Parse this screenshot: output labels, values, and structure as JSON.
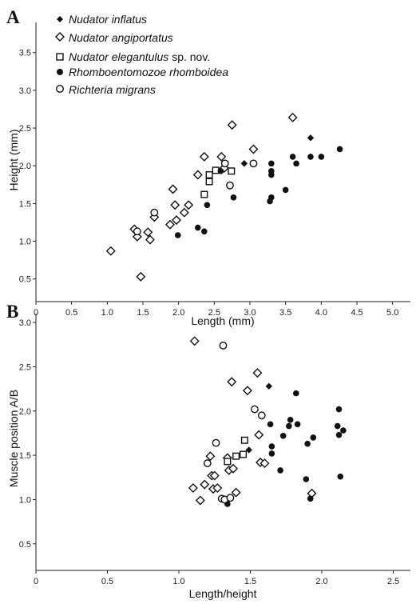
{
  "panels": [
    {
      "letter": "A",
      "xlabel": "Length (mm)",
      "ylabel": "Height (mm)",
      "xticks": [
        "0",
        "0.5",
        "1.0",
        "1.5",
        "2.0",
        "2.5",
        "3.0",
        "3.5",
        "4.0",
        "4.5",
        "5.0"
      ],
      "yticks": [
        "0.5",
        "1.0",
        "1.5",
        "2.0",
        "2.5",
        "3.0",
        "3.5"
      ]
    },
    {
      "letter": "B",
      "xlabel": "Length/height",
      "ylabel": "Muscle position A/B",
      "xticks": [
        "0",
        "0.5",
        "1.0",
        "1.5",
        "2.0",
        "2.5"
      ],
      "yticks": [
        "0.5",
        "1.0",
        "1.5",
        "2.0",
        "2.5",
        "3.0"
      ]
    }
  ],
  "legend": [
    {
      "italic": "Nudator inflatus",
      "suffix": "",
      "marker": "filled-diamond"
    },
    {
      "italic": "Nudator angiportatus",
      "suffix": "",
      "marker": "open-diamond"
    },
    {
      "italic": "Nudator elegantulus",
      "suffix": " sp. nov.",
      "marker": "open-square"
    },
    {
      "italic": "Rhomboentomozoe rhomboidea",
      "suffix": "",
      "marker": "filled-circle"
    },
    {
      "italic": "Richteria migrans",
      "suffix": "",
      "marker": "open-circle"
    }
  ],
  "chart_data": [
    {
      "type": "scatter",
      "xlim": [
        0,
        5.25
      ],
      "ylim": [
        0.2,
        3.9
      ],
      "series": [
        {
          "name": "Nudator inflatus",
          "marker": "filled-diamond",
          "points": [
            [
              2.62,
              1.97
            ],
            [
              2.92,
              2.03
            ],
            [
              3.85,
              2.37
            ]
          ]
        },
        {
          "name": "Nudator angiportatus",
          "marker": "open-diamond",
          "points": [
            [
              1.05,
              0.87
            ],
            [
              1.38,
              1.16
            ],
            [
              1.42,
              1.06
            ],
            [
              1.47,
              0.53
            ],
            [
              1.57,
              1.12
            ],
            [
              1.6,
              1.02
            ],
            [
              1.66,
              1.32
            ],
            [
              1.88,
              1.22
            ],
            [
              1.92,
              1.69
            ],
            [
              1.95,
              1.48
            ],
            [
              1.97,
              1.28
            ],
            [
              2.08,
              1.38
            ],
            [
              2.14,
              1.48
            ],
            [
              2.27,
              1.88
            ],
            [
              2.36,
              2.12
            ],
            [
              2.6,
              2.12
            ],
            [
              2.64,
              1.97
            ],
            [
              2.75,
              2.54
            ],
            [
              3.05,
              2.22
            ],
            [
              3.6,
              2.64
            ]
          ]
        },
        {
          "name": "Nudator elegantulus",
          "marker": "open-square",
          "points": [
            [
              2.36,
              1.62
            ],
            [
              2.43,
              1.79
            ],
            [
              2.43,
              1.88
            ],
            [
              2.52,
              1.94
            ],
            [
              2.74,
              1.93
            ]
          ]
        },
        {
          "name": "Rhomboentomozoe rhomboidea",
          "marker": "filled-circle",
          "points": [
            [
              1.99,
              1.08
            ],
            [
              2.27,
              1.18
            ],
            [
              2.36,
              1.13
            ],
            [
              2.4,
              1.48
            ],
            [
              2.59,
              1.93
            ],
            [
              2.77,
              1.58
            ],
            [
              3.28,
              1.53
            ],
            [
              3.3,
              1.58
            ],
            [
              3.3,
              1.88
            ],
            [
              3.3,
              1.93
            ],
            [
              3.3,
              2.03
            ],
            [
              3.5,
              1.68
            ],
            [
              3.6,
              2.12
            ],
            [
              3.65,
              2.03
            ],
            [
              3.85,
              2.12
            ],
            [
              4.0,
              2.12
            ],
            [
              4.26,
              2.22
            ]
          ]
        },
        {
          "name": "Richteria migrans",
          "marker": "open-circle",
          "points": [
            [
              1.42,
              1.13
            ],
            [
              1.66,
              1.38
            ],
            [
              2.65,
              2.03
            ],
            [
              2.72,
              1.74
            ],
            [
              3.05,
              2.03
            ]
          ]
        }
      ]
    },
    {
      "type": "scatter",
      "xlim": [
        0,
        2.62
      ],
      "ylim": [
        0.2,
        3.1
      ],
      "series": [
        {
          "name": "Nudator inflatus",
          "marker": "filled-diamond",
          "points": [
            [
              1.49,
              1.56
            ],
            [
              1.63,
              2.28
            ]
          ]
        },
        {
          "name": "Nudator angiportatus",
          "marker": "open-diamond",
          "points": [
            [
              1.11,
              2.79
            ],
            [
              1.1,
              1.13
            ],
            [
              1.15,
              0.99
            ],
            [
              1.18,
              1.17
            ],
            [
              1.22,
              1.49
            ],
            [
              1.23,
              1.27
            ],
            [
              1.24,
              1.12
            ],
            [
              1.27,
              1.13
            ],
            [
              1.34,
              1.47
            ],
            [
              1.35,
              1.33
            ],
            [
              1.37,
              2.33
            ],
            [
              1.38,
              1.35
            ],
            [
              1.4,
              1.08
            ],
            [
              1.48,
              2.23
            ],
            [
              1.55,
              2.43
            ],
            [
              1.56,
              1.73
            ],
            [
              1.57,
              1.42
            ],
            [
              1.6,
              1.41
            ],
            [
              1.93,
              1.07
            ],
            [
              1.25,
              1.27
            ]
          ]
        },
        {
          "name": "Nudator elegantulus",
          "marker": "open-square",
          "points": [
            [
              1.34,
              1.43
            ],
            [
              1.4,
              1.49
            ],
            [
              1.45,
              1.51
            ],
            [
              1.46,
              1.67
            ]
          ]
        },
        {
          "name": "Rhomboentomozoe rhomboidea",
          "marker": "filled-circle",
          "points": [
            [
              1.34,
              0.95
            ],
            [
              1.64,
              1.85
            ],
            [
              1.65,
              1.6
            ],
            [
              1.65,
              1.52
            ],
            [
              1.71,
              1.33
            ],
            [
              1.73,
              1.72
            ],
            [
              1.77,
              1.83
            ],
            [
              1.78,
              1.9
            ],
            [
              1.82,
              2.2
            ],
            [
              1.83,
              1.85
            ],
            [
              1.89,
              1.23
            ],
            [
              1.9,
              1.63
            ],
            [
              1.92,
              1.01
            ],
            [
              1.94,
              1.7
            ],
            [
              2.11,
              1.83
            ],
            [
              2.12,
              2.02
            ],
            [
              2.12,
              1.73
            ],
            [
              2.13,
              1.26
            ],
            [
              2.15,
              1.78
            ]
          ]
        },
        {
          "name": "Richteria migrans",
          "marker": "open-circle",
          "points": [
            [
              1.2,
              1.41
            ],
            [
              1.26,
              1.64
            ],
            [
              1.3,
              1.01
            ],
            [
              1.31,
              2.74
            ],
            [
              1.32,
              1.0
            ],
            [
              1.36,
              1.02
            ],
            [
              1.53,
              2.02
            ],
            [
              1.58,
              1.95
            ]
          ]
        }
      ]
    }
  ]
}
